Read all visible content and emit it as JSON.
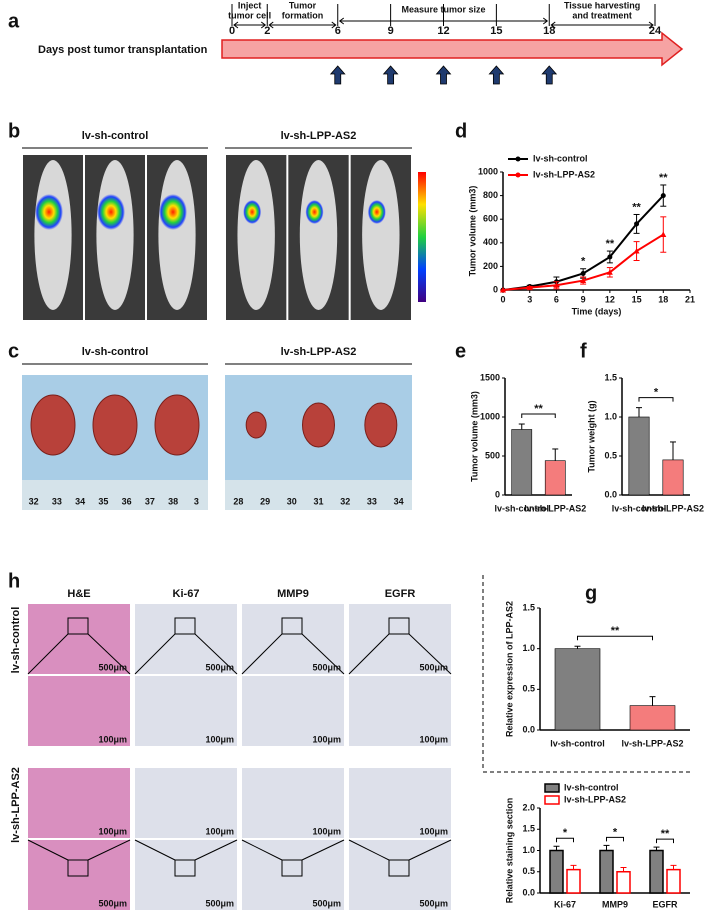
{
  "panel_labels": [
    "a",
    "b",
    "d",
    "c",
    "e",
    "f",
    "h",
    "g"
  ],
  "timeline": {
    "label": "Days post tumor transplantation",
    "days": [
      0,
      2,
      6,
      9,
      12,
      15,
      18,
      24
    ],
    "phases": [
      [
        "Inject",
        "tumor cell"
      ],
      [
        "Tumor",
        "formation"
      ],
      [
        "Measure tumor size"
      ],
      [
        "Tissue harvesting",
        "and treatment"
      ]
    ]
  },
  "imaging": {
    "groups": [
      "lv-sh-control",
      "lv-sh-LPP-AS2"
    ]
  },
  "tumors": {
    "groups": [
      "lv-sh-control",
      "lv-sh-LPP-AS2"
    ],
    "rulers": [
      [
        32,
        33,
        34,
        35,
        36,
        37,
        38,
        3
      ],
      [
        28,
        29,
        30,
        31,
        32,
        33,
        34
      ]
    ]
  },
  "histology": {
    "columns": [
      "H&E",
      "Ki-67",
      "MMP9",
      "EGFR"
    ],
    "rows": [
      "lv-sh-control",
      "lv-sh-LPP-AS2"
    ],
    "scale_bars": [
      "500μm",
      "100μm"
    ]
  },
  "chart_data": [
    {
      "type": "line",
      "ylabel": "Tumor volume (mm3)",
      "xlabel": "Time (days)",
      "x": [
        0,
        3,
        6,
        9,
        12,
        15,
        18
      ],
      "xlim": [
        0,
        21
      ],
      "xticks": [
        0,
        3,
        6,
        9,
        12,
        15,
        18,
        21
      ],
      "ylim": [
        0,
        1000
      ],
      "yticks": [
        0,
        200,
        400,
        600,
        800,
        1000
      ],
      "series": [
        {
          "name": "lv-sh-control",
          "color": "#000000",
          "values": [
            0,
            30,
            70,
            140,
            280,
            560,
            800
          ],
          "errors": [
            0,
            10,
            40,
            40,
            50,
            80,
            90
          ]
        },
        {
          "name": "lv-sh-LPP-AS2",
          "color": "#ff0000",
          "values": [
            0,
            20,
            40,
            80,
            150,
            330,
            470
          ],
          "errors": [
            0,
            10,
            30,
            30,
            40,
            80,
            150
          ]
        }
      ],
      "significance": [
        null,
        null,
        null,
        "*",
        "**",
        "**",
        "**"
      ]
    },
    {
      "type": "bar",
      "ylabel": "Tumor volume (mm3)",
      "categories": [
        "lv-sh-control",
        "lv-sh-LPP-AS2"
      ],
      "values": [
        840,
        440
      ],
      "errors": [
        70,
        150
      ],
      "colors": [
        "#808080",
        "#f47c7c"
      ],
      "ylim": [
        0,
        1500
      ],
      "yticks": [
        0,
        500,
        1000,
        1500
      ],
      "significance": "**"
    },
    {
      "type": "bar",
      "ylabel": "Tumor weight (g)",
      "categories": [
        "lv-sh-control",
        "lv-sh-LPP-AS2"
      ],
      "values": [
        1.0,
        0.45
      ],
      "errors": [
        0.12,
        0.23
      ],
      "colors": [
        "#808080",
        "#f47c7c"
      ],
      "ylim": [
        0,
        1.5
      ],
      "yticks": [
        {
          "value": 0,
          "label": "0.0"
        },
        0.5,
        {
          "value": 1,
          "label": "1.0"
        },
        1.5
      ],
      "significance": "*"
    },
    {
      "type": "bar",
      "ylabel": "Relative expression of LPP-AS2",
      "categories": [
        "lv-sh-control",
        "lv-sh-LPP-AS2"
      ],
      "values": [
        1.0,
        0.3
      ],
      "errors": [
        0.03,
        0.11
      ],
      "colors": [
        "#808080",
        "#f47c7c"
      ],
      "ylim": [
        0,
        1.5
      ],
      "yticks": [
        {
          "value": 0,
          "label": "0.0"
        },
        0.5,
        {
          "value": 1,
          "label": "1.0"
        },
        1.5
      ],
      "significance": "**"
    },
    {
      "type": "grouped-bar",
      "ylabel": "Relative staining section",
      "categories": [
        "Ki-67",
        "MMP9",
        "EGFR"
      ],
      "series": [
        {
          "name": "lv-sh-control",
          "color": "#000000",
          "fill": "#808080",
          "values": [
            1.0,
            1.0,
            1.0
          ],
          "errors": [
            0.1,
            0.12,
            0.08
          ]
        },
        {
          "name": "lv-sh-LPP-AS2",
          "color": "#ff0000",
          "fill": "#ffffff",
          "values": [
            0.55,
            0.5,
            0.55
          ],
          "errors": [
            0.1,
            0.1,
            0.1
          ]
        }
      ],
      "ylim": [
        0,
        2.0
      ],
      "yticks": [
        {
          "value": 0,
          "label": "0.0"
        },
        0.5,
        {
          "value": 1,
          "label": "1.0"
        },
        1.5,
        {
          "value": 2,
          "label": "2.0"
        }
      ],
      "significance": [
        "*",
        "*",
        "**"
      ]
    }
  ]
}
